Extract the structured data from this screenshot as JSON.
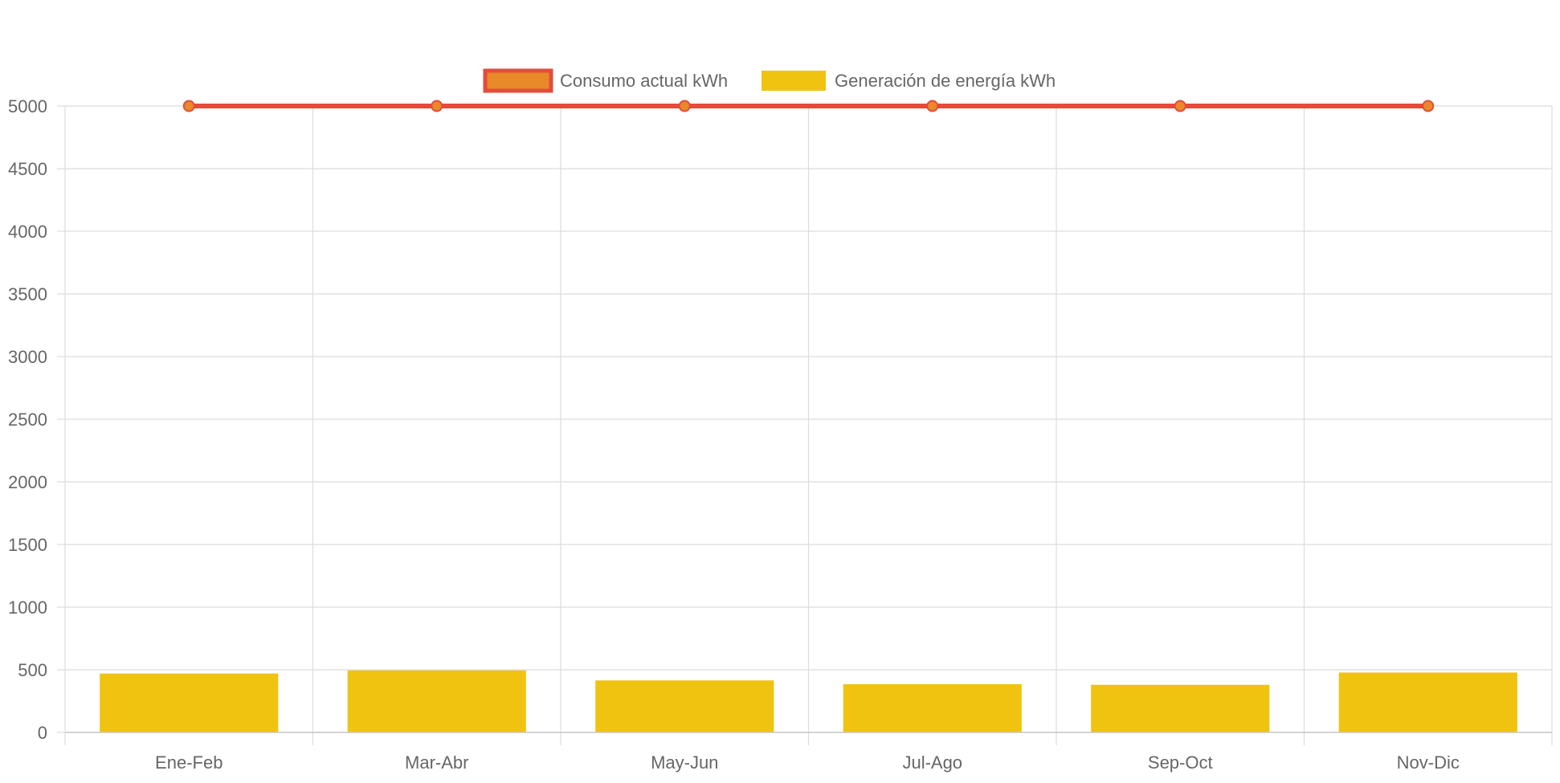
{
  "chart_data": {
    "type": "bar",
    "title": "",
    "xlabel": "",
    "ylabel": "",
    "categories": [
      "Ene-Feb",
      "Mar-Abr",
      "May-Jun",
      "Jul-Ago",
      "Sep-Oct",
      "Nov-Dic"
    ],
    "ylim": [
      0,
      5000
    ],
    "yticks": [
      0,
      500,
      1000,
      1500,
      2000,
      2500,
      3000,
      3500,
      4000,
      4500,
      5000
    ],
    "grid": true,
    "legend_position": "top-center",
    "series": [
      {
        "name": "Consumo actual kWh",
        "type": "line",
        "values": [
          5000,
          5000,
          5000,
          5000,
          5000,
          5000
        ],
        "color": "#e34c3b",
        "fill_color": "#e8892a"
      },
      {
        "name": "Generación de energía kWh",
        "type": "bar",
        "values": [
          470,
          495,
          415,
          385,
          380,
          478
        ],
        "color": "#f0c311"
      }
    ]
  }
}
